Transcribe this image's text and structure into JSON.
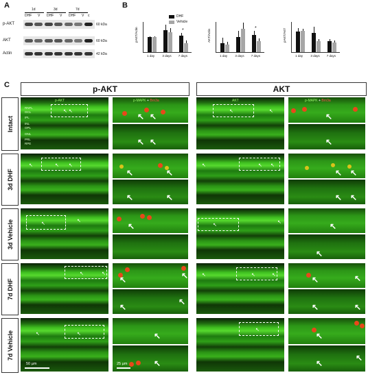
{
  "panels": {
    "a": "A",
    "b": "B",
    "c": "C"
  },
  "blot": {
    "groups": [
      "1d",
      "3d",
      "7d"
    ],
    "lanes": [
      "DHF",
      "V",
      "DHF",
      "V",
      "DHF",
      "V",
      "c"
    ],
    "rows": [
      {
        "label": "p-AKT",
        "kda": "60 kDa"
      },
      {
        "label": "AKT",
        "kda": "60 kDa"
      },
      {
        "label": "Actin",
        "kda": "42 kDa"
      }
    ]
  },
  "chart_data": [
    {
      "type": "bar",
      "ylabel": "pAKT/Actin",
      "categories": [
        "1 day",
        "3 days",
        "7 days"
      ],
      "series": [
        {
          "name": "DHF",
          "values": [
            0.9,
            1.3,
            1.0
          ],
          "err": [
            0.05,
            0.35,
            0.15
          ]
        },
        {
          "name": "Vehicle",
          "values": [
            0.9,
            1.2,
            0.55
          ],
          "err": [
            0.05,
            0.25,
            0.15
          ]
        }
      ],
      "ylim": [
        0,
        1.8
      ],
      "annotations": [
        {
          "category": "7 days",
          "text": "*"
        }
      ]
    },
    {
      "type": "bar",
      "ylabel": "AKT/Actin",
      "categories": [
        "1 day",
        "3 days",
        "7 days"
      ],
      "series": [
        {
          "name": "DHF",
          "values": [
            0.6,
            1.0,
            1.15
          ],
          "err": [
            0.35,
            0.4,
            0.25
          ]
        },
        {
          "name": "Vehicle",
          "values": [
            0.5,
            1.55,
            0.75
          ],
          "err": [
            0.2,
            0.4,
            0.15
          ]
        }
      ],
      "ylim": [
        0,
        2.0
      ],
      "annotations": [
        {
          "category": "7 days",
          "text": "*"
        }
      ]
    },
    {
      "type": "bar",
      "ylabel": "pAKT/AKT",
      "categories": [
        "1 day",
        "3 days",
        "7 days"
      ],
      "series": [
        {
          "name": "DHF",
          "values": [
            1.5,
            1.4,
            0.8
          ],
          "err": [
            0.25,
            0.45,
            0.15
          ]
        },
        {
          "name": "Vehicle",
          "values": [
            1.55,
            0.8,
            0.7
          ],
          "err": [
            0.15,
            0.15,
            0.15
          ]
        }
      ],
      "ylim": [
        0,
        2.2
      ],
      "annotations": []
    }
  ],
  "legend": [
    "DHF",
    "Vehicle"
  ],
  "colors": {
    "dhf": "#111111",
    "vehicle": "#a6a6a6"
  },
  "headers": {
    "left": "p-AKT",
    "right": "AKT"
  },
  "row_labels": [
    "Intact",
    "3d DHF",
    "3d Vehicle",
    "7d DHF",
    "7d Vehicle"
  ],
  "micro_labels": {
    "pakt": "p-AKT",
    "pmapk": "p-MAPK",
    "plus": "+",
    "brn3a": "Brn3a",
    "akt": "AKT"
  },
  "layers": [
    "RNFL",
    "GCL",
    "IPL",
    "INL",
    "OPL",
    "ONL",
    "PRL",
    "RPE"
  ],
  "scale_bars": {
    "left": "50 µm",
    "zoom": "25 µm"
  }
}
